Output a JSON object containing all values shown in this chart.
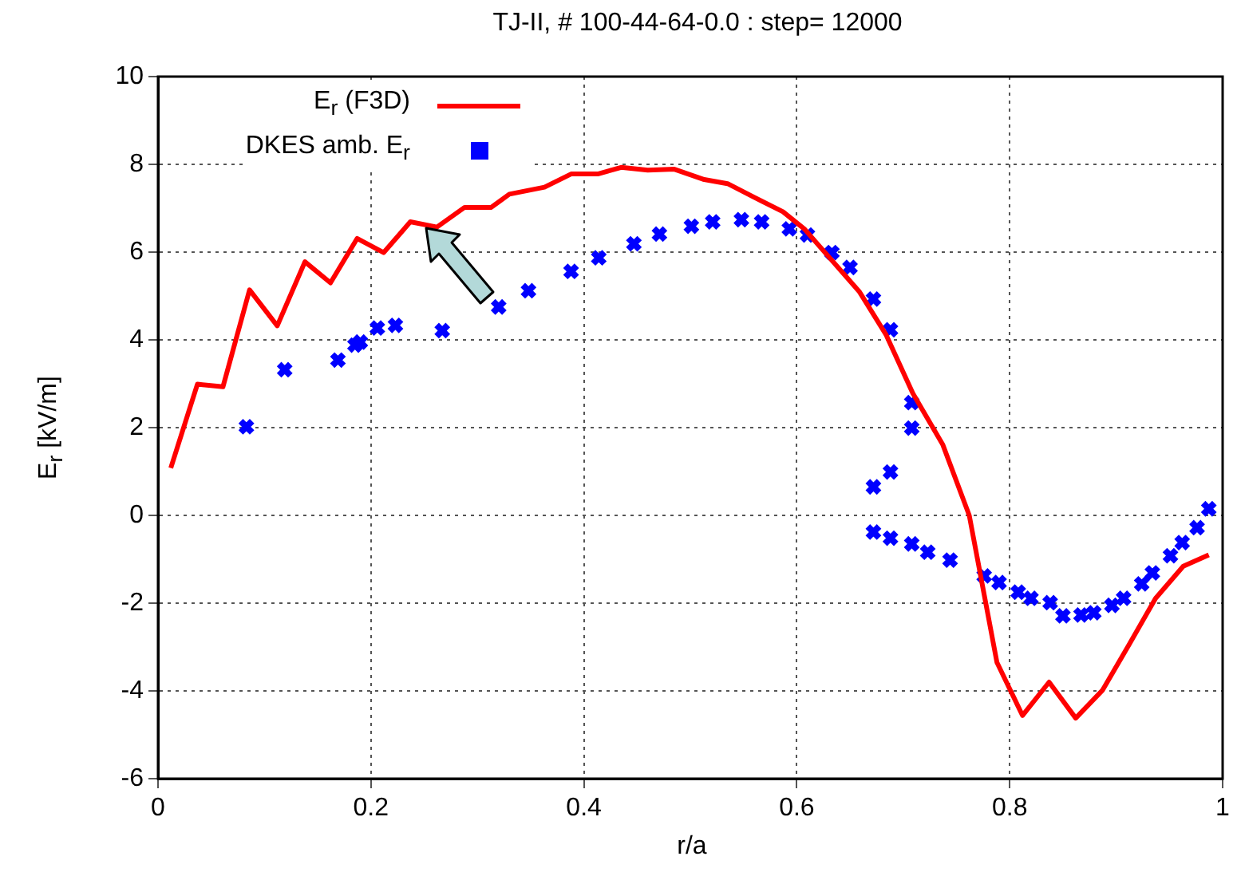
{
  "chart_data": {
    "type": "line",
    "title": "TJ-II, # 100-44-64-0.0 : step= 12000",
    "xlabel": "r/a",
    "ylabel": "E$_{r}$ [kV/m]",
    "xlim": [
      0,
      1
    ],
    "xticks": [
      0,
      0.2,
      0.4,
      0.6,
      0.8,
      1
    ],
    "ylim": [
      -6,
      10
    ],
    "yticks": [
      -6,
      -4,
      -2,
      0,
      2,
      4,
      6,
      8,
      10
    ],
    "grid": true,
    "legend": "top left",
    "series": [
      {
        "name": "E$_{r}$ (F3D)",
        "type": "line",
        "color": "#ff0000",
        "marker": "none",
        "x": [
          0.012,
          0.037,
          0.061,
          0.086,
          0.112,
          0.138,
          0.162,
          0.187,
          0.212,
          0.237,
          0.262,
          0.288,
          0.313,
          0.33,
          0.363,
          0.388,
          0.413,
          0.435,
          0.46,
          0.485,
          0.512,
          0.535,
          0.559,
          0.587,
          0.607,
          0.659,
          0.684,
          0.709,
          0.737,
          0.762,
          0.788,
          0.812,
          0.837,
          0.862,
          0.887,
          0.912,
          0.937,
          0.963,
          0.987
        ],
        "values": [
          1.08,
          2.99,
          2.93,
          5.14,
          4.32,
          5.78,
          5.3,
          6.31,
          5.99,
          6.69,
          6.57,
          7.02,
          7.02,
          7.32,
          7.48,
          7.78,
          7.78,
          7.93,
          7.87,
          7.89,
          7.66,
          7.56,
          7.26,
          6.92,
          6.53,
          5.09,
          4.11,
          2.78,
          1.62,
          0,
          -3.35,
          -4.56,
          -3.8,
          -4.62,
          -3.99,
          -2.95,
          -1.89,
          -1.16,
          -0.9
        ]
      },
      {
        "name": "DKES amb. E$_{r}$",
        "type": "scatter",
        "color": "#0000ff",
        "marker": "cross",
        "x": [
          0.083,
          0.119,
          0.169,
          0.185,
          0.19,
          0.206,
          0.223,
          0.267,
          0.32,
          0.348,
          0.388,
          0.414,
          0.447,
          0.471,
          0.501,
          0.521,
          0.548,
          0.567,
          0.593,
          0.61,
          0.633,
          0.65,
          0.672,
          0.688,
          0.708,
          0.708,
          0.672,
          0.688,
          0.672,
          0.688,
          0.708,
          0.723,
          0.744,
          0.776,
          0.79,
          0.808,
          0.82,
          0.838,
          0.85,
          0.867,
          0.879,
          0.896,
          0.907,
          0.924,
          0.934,
          0.951,
          0.962,
          0.976,
          0.987
        ],
        "values": [
          2.02,
          3.32,
          3.54,
          3.88,
          3.95,
          4.27,
          4.33,
          4.21,
          4.75,
          5.12,
          5.56,
          5.87,
          6.19,
          6.41,
          6.59,
          6.69,
          6.74,
          6.69,
          6.53,
          6.39,
          5.99,
          5.65,
          4.93,
          4.23,
          2.57,
          1.99,
          0.65,
          0.99,
          -0.38,
          -0.52,
          -0.65,
          -0.84,
          -1.02,
          -1.38,
          -1.53,
          -1.75,
          -1.89,
          -1.99,
          -2.29,
          -2.27,
          -2.22,
          -2.05,
          -1.89,
          -1.56,
          -1.31,
          -0.92,
          -0.62,
          -0.28,
          0.15
        ]
      }
    ]
  }
}
